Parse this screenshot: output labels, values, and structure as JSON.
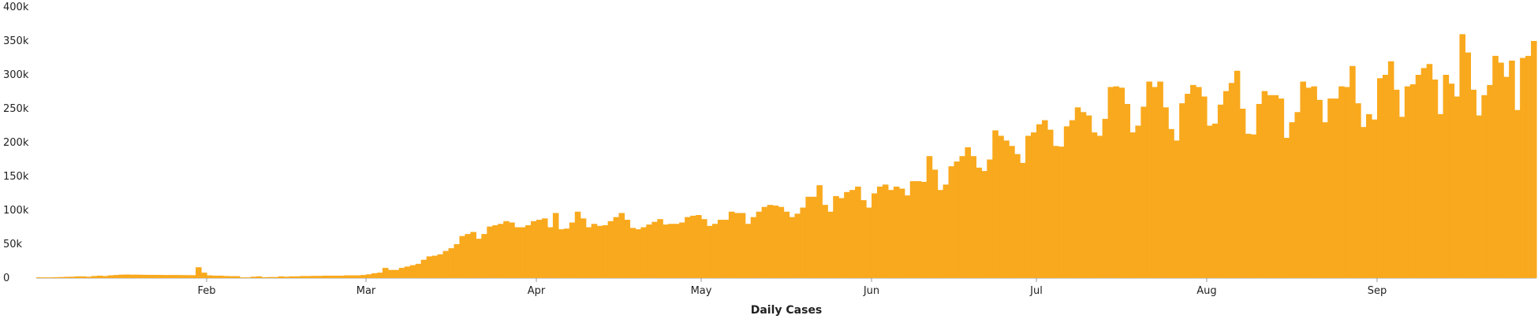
{
  "chart_data": {
    "type": "bar",
    "title": "",
    "xlabel": "Daily Cases",
    "ylabel": "",
    "ylim": [
      0,
      400000
    ],
    "y_ticks": [
      {
        "value": 0,
        "label": "0"
      },
      {
        "value": 50000,
        "label": "50k"
      },
      {
        "value": 100000,
        "label": "100k"
      },
      {
        "value": 150000,
        "label": "150k"
      },
      {
        "value": 200000,
        "label": "200k"
      },
      {
        "value": 250000,
        "label": "250k"
      },
      {
        "value": 300000,
        "label": "300k"
      },
      {
        "value": 350000,
        "label": "350k"
      },
      {
        "value": 400000,
        "label": "400k"
      }
    ],
    "x_ticks": [
      {
        "day_index": 31,
        "label": "Feb"
      },
      {
        "day_index": 60,
        "label": "Mar"
      },
      {
        "day_index": 91,
        "label": "Apr"
      },
      {
        "day_index": 121,
        "label": "May"
      },
      {
        "day_index": 152,
        "label": "Jun"
      },
      {
        "day_index": 182,
        "label": "Jul"
      },
      {
        "day_index": 213,
        "label": "Aug"
      },
      {
        "day_index": 244,
        "label": "Sep"
      }
    ],
    "bar_color": "#F9A91D",
    "grid": false,
    "legend": "none",
    "series": [
      {
        "values": [
          1000,
          1000,
          1000,
          1200,
          1500,
          1800,
          2000,
          2500,
          2500,
          2000,
          3000,
          3500,
          3000,
          4000,
          4500,
          5000,
          5200,
          5000,
          5000,
          4800,
          4700,
          4700,
          4600,
          4500,
          4500,
          4500,
          4400,
          4300,
          4200,
          16000,
          8000,
          4000,
          3500,
          3500,
          3000,
          2800,
          2800,
          1000,
          1000,
          2000,
          2500,
          1200,
          1500,
          1500,
          2500,
          2000,
          2500,
          2500,
          3000,
          3000,
          3200,
          3200,
          3500,
          3500,
          3500,
          3500,
          4000,
          4000,
          4000,
          4500,
          5500,
          7000,
          8000,
          15000,
          12000,
          12000,
          15000,
          17000,
          19000,
          21000,
          27000,
          32000,
          33000,
          35000,
          40000,
          44000,
          50000,
          62000,
          65000,
          68000,
          58000,
          65000,
          76000,
          78000,
          80000,
          84000,
          82000,
          75000,
          75000,
          78000,
          84000,
          86000,
          88000,
          75000,
          96000,
          72000,
          73000,
          82000,
          98000,
          88000,
          75000,
          80000,
          77000,
          78000,
          84000,
          90000,
          96000,
          86000,
          74000,
          72000,
          75000,
          79000,
          83000,
          87000,
          79000,
          80000,
          80000,
          82000,
          90000,
          92000,
          93000,
          87000,
          77000,
          80000,
          86000,
          86000,
          98000,
          96000,
          96000,
          80000,
          90000,
          98000,
          105000,
          108000,
          107000,
          105000,
          98000,
          90000,
          95000,
          104000,
          120000,
          120000,
          137000,
          108000,
          98000,
          121000,
          118000,
          127000,
          130000,
          135000,
          115000,
          104000,
          125000,
          135000,
          138000,
          130000,
          135000,
          132000,
          122000,
          143000,
          143000,
          142000,
          180000,
          160000,
          130000,
          138000,
          165000,
          172000,
          180000,
          193000,
          180000,
          163000,
          158000,
          175000,
          218000,
          210000,
          203000,
          195000,
          183000,
          170000,
          210000,
          215000,
          227000,
          233000,
          219000,
          195000,
          194000,
          224000,
          233000,
          252000,
          245000,
          240000,
          215000,
          210000,
          235000,
          282000,
          283000,
          281000,
          257000,
          215000,
          225000,
          253000,
          290000,
          282000,
          290000,
          252000,
          220000,
          203000,
          258000,
          272000,
          285000,
          282000,
          268000,
          225000,
          228000,
          256000,
          276000,
          288000,
          306000,
          250000,
          213000,
          212000,
          257000,
          276000,
          270000,
          270000,
          265000,
          207000,
          230000,
          245000,
          290000,
          281000,
          283000,
          263000,
          230000,
          265000,
          265000,
          283000,
          282000,
          313000,
          258000,
          223000,
          242000,
          234000,
          295000,
          300000,
          320000,
          278000,
          238000,
          283000,
          286000,
          300000,
          310000,
          316000,
          293000,
          242000,
          300000,
          287000,
          268000,
          360000,
          333000,
          278000,
          240000,
          270000,
          285000,
          328000,
          318000,
          297000,
          321000,
          248000,
          325000,
          328000,
          350000
        ]
      }
    ]
  }
}
